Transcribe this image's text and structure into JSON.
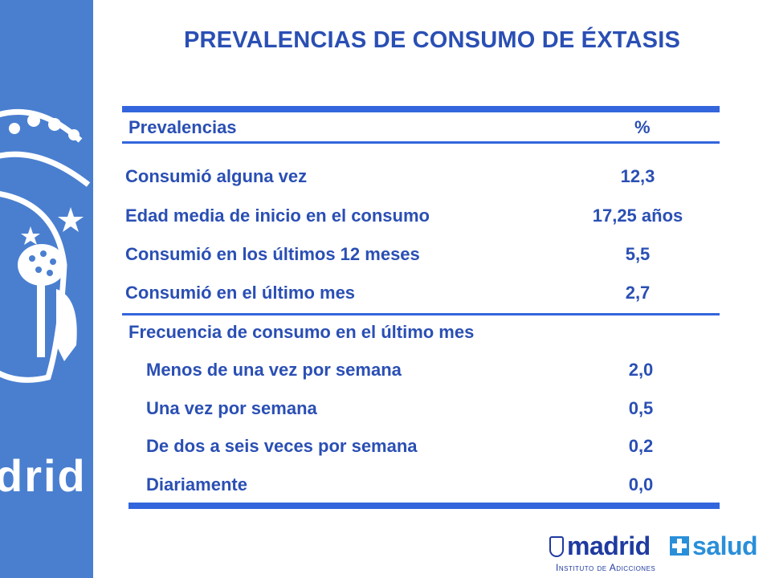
{
  "title": "PREVALENCIAS DE CONSUMO DE ÉXTASIS",
  "table": {
    "header": {
      "label": "Prevalencias",
      "value": "%"
    },
    "rows": [
      {
        "label": "Consumió alguna vez",
        "value": "12,3"
      },
      {
        "label": "Edad media de inicio en el consumo",
        "value": "17,25 años"
      },
      {
        "label": "Consumió en los últimos 12 meses",
        "value": "5,5"
      },
      {
        "label": "Consumió en el último mes",
        "value": "2,7"
      }
    ],
    "frequency_section": {
      "label": "Frecuencia de consumo en el último mes",
      "rows": [
        {
          "label": "Menos de una vez por semana",
          "value": "2,0"
        },
        {
          "label": "Una vez por semana",
          "value": "0,5"
        },
        {
          "label": "De dos a seis veces por semana",
          "value": "0,2"
        },
        {
          "label": "Diariamente",
          "value": "0,0"
        }
      ]
    }
  },
  "sidebar": {
    "logo_text": "drid"
  },
  "footer_logo": {
    "brand": "madrid",
    "brand_suffix": "salud",
    "subtitle": "Instituto de Adicciones"
  },
  "colors": {
    "accent": "#2a4fb4",
    "rule": "#3366dd",
    "sidebar": "#4a7fd0"
  }
}
